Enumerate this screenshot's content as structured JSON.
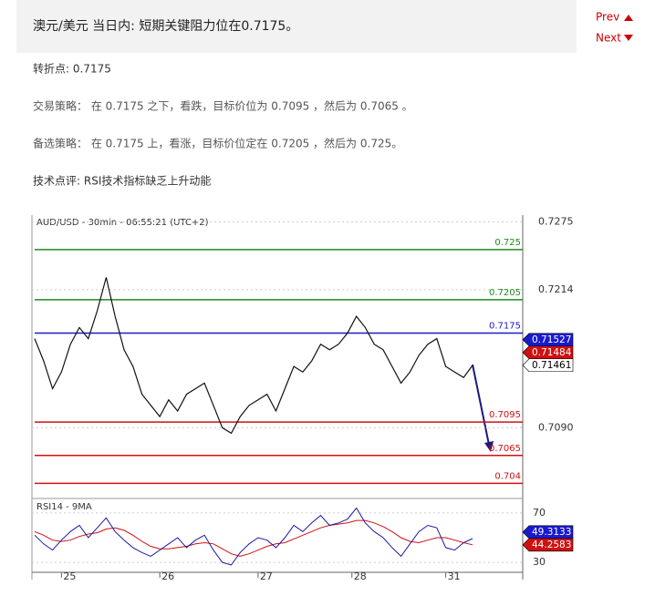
{
  "header": {
    "title": "澳元/美元 当日内: 短期关键阻力位在0.7175。",
    "prev": "Prev",
    "next": "Next"
  },
  "body": {
    "pivot": "转折点: 0.7175",
    "strategy": "交易策略： 在 0.7175 之下，看跌，目标价位为 0.7095 ，然后为 0.7065 。",
    "alternative": "备选策略： 在 0.7175 上，看涨，目标价位定在 0.7205 ，然后为 0.725。",
    "comment": "技术点评: RSI技术指标缺乏上升动能"
  },
  "chart": {
    "title": "AUD/USD - 30min - 06:55:21 (UTC+2)",
    "ylim": [
      0.7028,
      0.7281
    ],
    "yticks": [
      0.7275,
      0.7214,
      {
        "value": 0.709,
        "label": "0.7090"
      }
    ],
    "xlim": [
      0,
      49
    ],
    "xticks": [
      {
        "value": 3,
        "label": "25"
      },
      {
        "value": 14,
        "label": "26"
      },
      {
        "value": 25,
        "label": "27"
      },
      {
        "value": 35.5,
        "label": "28"
      },
      {
        "value": 46,
        "label": "31"
      }
    ],
    "levels": [
      {
        "value": 0.725,
        "color": "#1f8a1f"
      },
      {
        "value": 0.7205,
        "color": "#1f8a1f"
      },
      {
        "value": 0.7175,
        "color": "#1a1acc"
      },
      {
        "value": 0.7095,
        "color": "#d01010"
      },
      {
        "value": 0.7065,
        "color": "#d01010"
      },
      {
        "value": 0.704,
        "color": "#d01010"
      }
    ],
    "close": [
      0.717,
      0.715,
      0.7125,
      0.714,
      0.7165,
      0.718,
      0.717,
      0.7195,
      0.7225,
      0.719,
      0.716,
      0.7145,
      0.712,
      0.711,
      0.71,
      0.7115,
      0.7105,
      0.712,
      0.7125,
      0.713,
      0.711,
      0.709,
      0.7085,
      0.71,
      0.711,
      0.7115,
      0.712,
      0.7105,
      0.7125,
      0.7145,
      0.714,
      0.715,
      0.7165,
      0.716,
      0.7165,
      0.7175,
      0.719,
      0.718,
      0.7165,
      0.716,
      0.7145,
      0.713,
      0.714,
      0.7155,
      0.7165,
      0.717,
      0.7145,
      0.714,
      0.7135,
      0.7146
    ],
    "close_color": "#111111",
    "price_tags": [
      {
        "value": 0.71527,
        "fill": "#1a1acc",
        "text": "#ffffff"
      },
      {
        "value": 0.71484,
        "fill": "#d01010",
        "text": "#ffffff"
      },
      {
        "value": 0.71461,
        "fill": "#ffffff",
        "text": "#000000"
      }
    ],
    "rsi": {
      "title": "RSI14 - 9MA",
      "ylim": [
        22,
        81
      ],
      "yticks": [
        70,
        30
      ],
      "values": [
        52,
        45,
        40,
        48,
        55,
        60,
        50,
        58,
        66,
        55,
        48,
        42,
        38,
        35,
        40,
        45,
        50,
        42,
        48,
        52,
        40,
        30,
        28,
        38,
        45,
        50,
        48,
        42,
        50,
        60,
        55,
        62,
        68,
        60,
        62,
        65,
        74,
        62,
        55,
        50,
        42,
        35,
        45,
        55,
        60,
        58,
        42,
        40,
        46,
        49.3
      ],
      "ma": [
        55,
        52,
        48,
        47,
        48,
        51,
        53,
        54,
        57,
        58,
        56,
        52,
        47,
        43,
        41,
        41,
        42,
        43,
        45,
        46,
        45,
        41,
        37,
        35,
        37,
        40,
        43,
        45,
        46,
        49,
        52,
        55,
        58,
        60,
        61,
        62,
        64,
        64,
        62,
        59,
        55,
        50,
        47,
        46,
        48,
        50,
        50,
        48,
        46,
        44.3
      ],
      "color": "#1a1aa0",
      "ma_color": "#d01010",
      "tags": [
        {
          "value": 49.3133,
          "fill": "#1a1acc",
          "text": "#ffffff"
        },
        {
          "value": 44.2583,
          "fill": "#d01010",
          "text": "#ffffff"
        }
      ]
    }
  }
}
